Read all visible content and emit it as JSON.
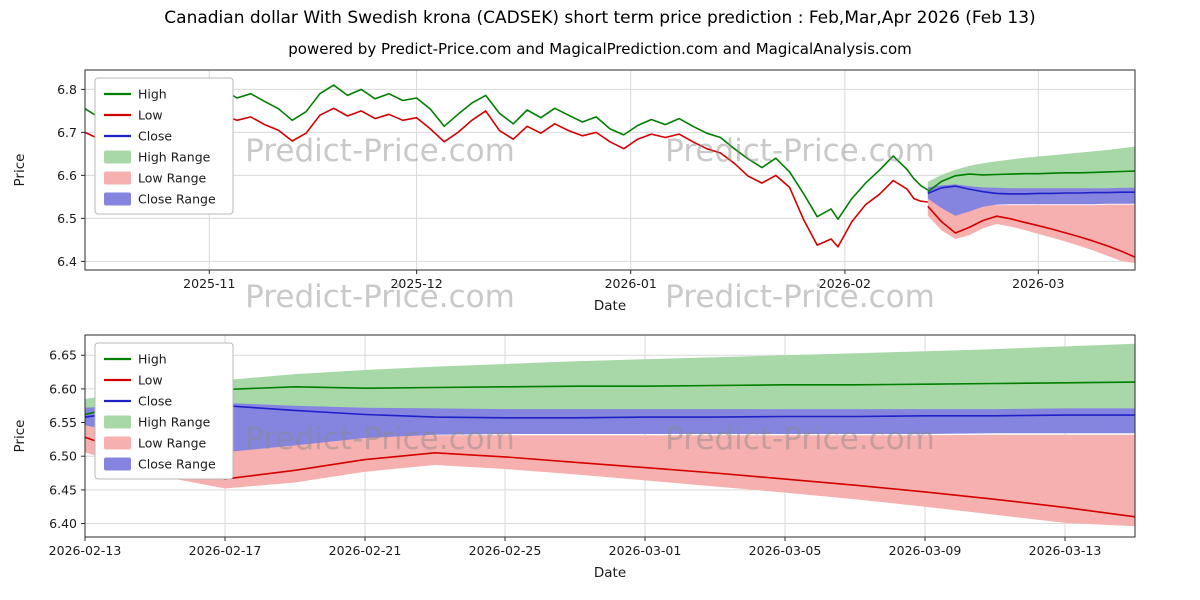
{
  "watermark": "Predict-Price.com",
  "colors": {
    "high": "#007f00",
    "low": "#d40000",
    "close": "#2020c8",
    "high_range": "#a8d8a8",
    "low_range": "#f7b0b0",
    "close_range": "#8585e0"
  },
  "chart_data": [
    {
      "id": "main-chart",
      "type": "line",
      "title": "Canadian dollar With Swedish krona (CADSEK) short term price prediction : Feb,Mar,Apr 2026 (Feb 13)",
      "subtitle": "powered by Predict-Price.com and MagicalPrediction.com and MagicalAnalysis.com",
      "xlabel": "Date",
      "ylabel": "Price",
      "xlim": [
        "2025-10-14",
        "2026-03-15"
      ],
      "ylim": [
        6.38,
        6.845
      ],
      "grid": true,
      "legend_position": "upper left",
      "yticks": [
        {
          "v": 6.4,
          "label": "6.4"
        },
        {
          "v": 6.5,
          "label": "6.5"
        },
        {
          "v": 6.6,
          "label": "6.6"
        },
        {
          "v": 6.7,
          "label": "6.7"
        },
        {
          "v": 6.8,
          "label": "6.8"
        }
      ],
      "xticks": [
        {
          "v": "2025-11-01",
          "label": "2025-11"
        },
        {
          "v": "2025-12-01",
          "label": "2025-12"
        },
        {
          "v": "2026-01-01",
          "label": "2026-01"
        },
        {
          "v": "2026-02-01",
          "label": "2026-02"
        },
        {
          "v": "2026-03-01",
          "label": "2026-03"
        }
      ],
      "legend": [
        {
          "label": "High",
          "swatch": "line",
          "color": "high"
        },
        {
          "label": "Low",
          "swatch": "line",
          "color": "low"
        },
        {
          "label": "Close",
          "swatch": "line",
          "color": "close"
        },
        {
          "label": "High Range",
          "swatch": "patch",
          "color": "high_range"
        },
        {
          "label": "Low Range",
          "swatch": "patch",
          "color": "low_range"
        },
        {
          "label": "Close Range",
          "swatch": "patch",
          "color": "close_range"
        }
      ],
      "series": {
        "historical": {
          "points": [
            [
              "2025-10-14",
              6.755,
              6.7
            ],
            [
              "2025-10-16",
              6.735,
              6.685
            ],
            [
              "2025-10-18",
              6.76,
              6.705
            ],
            [
              "2025-10-20",
              6.775,
              6.725
            ],
            [
              "2025-10-22",
              6.795,
              6.745
            ],
            [
              "2025-10-24",
              6.788,
              6.735
            ],
            [
              "2025-10-26",
              6.8,
              6.748
            ],
            [
              "2025-10-28",
              6.805,
              6.752
            ],
            [
              "2025-10-30",
              6.798,
              6.742
            ],
            [
              "2025-11-01",
              6.803,
              6.748
            ],
            [
              "2025-11-03",
              6.8,
              6.74
            ],
            [
              "2025-11-05",
              6.78,
              6.728
            ],
            [
              "2025-11-07",
              6.79,
              6.736
            ],
            [
              "2025-11-09",
              6.772,
              6.718
            ],
            [
              "2025-11-11",
              6.755,
              6.705
            ],
            [
              "2025-11-13",
              6.728,
              6.68
            ],
            [
              "2025-11-15",
              6.748,
              6.698
            ],
            [
              "2025-11-17",
              6.79,
              6.74
            ],
            [
              "2025-11-19",
              6.81,
              6.756
            ],
            [
              "2025-11-21",
              6.786,
              6.738
            ],
            [
              "2025-11-23",
              6.8,
              6.75
            ],
            [
              "2025-11-25",
              6.778,
              6.732
            ],
            [
              "2025-11-27",
              6.79,
              6.742
            ],
            [
              "2025-11-29",
              6.774,
              6.728
            ],
            [
              "2025-12-01",
              6.78,
              6.734
            ],
            [
              "2025-12-03",
              6.754,
              6.708
            ],
            [
              "2025-12-05",
              6.714,
              6.678
            ],
            [
              "2025-12-07",
              6.742,
              6.7
            ],
            [
              "2025-12-09",
              6.768,
              6.728
            ],
            [
              "2025-12-11",
              6.786,
              6.75
            ],
            [
              "2025-12-13",
              6.744,
              6.704
            ],
            [
              "2025-12-15",
              6.72,
              6.684
            ],
            [
              "2025-12-17",
              6.752,
              6.714
            ],
            [
              "2025-12-19",
              6.734,
              6.698
            ],
            [
              "2025-12-21",
              6.756,
              6.72
            ],
            [
              "2025-12-23",
              6.74,
              6.704
            ],
            [
              "2025-12-25",
              6.724,
              6.692
            ],
            [
              "2025-12-27",
              6.736,
              6.7
            ],
            [
              "2025-12-29",
              6.708,
              6.678
            ],
            [
              "2025-12-31",
              6.694,
              6.662
            ],
            [
              "2026-01-02",
              6.716,
              6.684
            ],
            [
              "2026-01-04",
              6.73,
              6.696
            ],
            [
              "2026-01-06",
              6.718,
              6.688
            ],
            [
              "2026-01-08",
              6.732,
              6.696
            ],
            [
              "2026-01-10",
              6.714,
              6.678
            ],
            [
              "2026-01-12",
              6.698,
              6.662
            ],
            [
              "2026-01-14",
              6.688,
              6.652
            ],
            [
              "2026-01-16",
              6.662,
              6.628
            ],
            [
              "2026-01-18",
              6.638,
              6.598
            ],
            [
              "2026-01-20",
              6.618,
              6.582
            ],
            [
              "2026-01-22",
              6.64,
              6.6
            ],
            [
              "2026-01-24",
              6.608,
              6.572
            ],
            [
              "2026-01-26",
              6.558,
              6.498
            ],
            [
              "2026-01-28",
              6.504,
              6.438
            ],
            [
              "2026-01-30",
              6.522,
              6.452
            ],
            [
              "2026-01-31",
              6.498,
              6.434
            ],
            [
              "2026-02-02",
              6.546,
              6.492
            ],
            [
              "2026-02-04",
              6.582,
              6.532
            ],
            [
              "2026-02-06",
              6.612,
              6.556
            ],
            [
              "2026-02-08",
              6.645,
              6.588
            ],
            [
              "2026-02-10",
              6.614,
              6.568
            ],
            [
              "2026-02-11",
              6.592,
              6.546
            ],
            [
              "2026-02-12",
              6.576,
              6.54
            ],
            [
              "2026-02-13",
              6.566,
              6.538
            ]
          ]
        },
        "forecast": {
          "dates": [
            "2026-02-13",
            "2026-02-15",
            "2026-02-17",
            "2026-02-19",
            "2026-02-21",
            "2026-02-23",
            "2026-02-25",
            "2026-02-27",
            "2026-03-01",
            "2026-03-03",
            "2026-03-05",
            "2026-03-07",
            "2026-03-09",
            "2026-03-11",
            "2026-03-13",
            "2026-03-15"
          ],
          "high": [
            6.562,
            6.586,
            6.599,
            6.603,
            6.601,
            6.602,
            6.603,
            6.604,
            6.604,
            6.605,
            6.606,
            6.606,
            6.607,
            6.608,
            6.609,
            6.61
          ],
          "low": [
            6.528,
            6.492,
            6.466,
            6.479,
            6.495,
            6.505,
            6.499,
            6.491,
            6.483,
            6.475,
            6.466,
            6.457,
            6.447,
            6.436,
            6.424,
            6.41
          ],
          "close": [
            6.558,
            6.571,
            6.575,
            6.568,
            6.562,
            6.558,
            6.557,
            6.557,
            6.558,
            6.558,
            6.559,
            6.559,
            6.56,
            6.56,
            6.561,
            6.561
          ],
          "high_range_top": [
            6.585,
            6.601,
            6.613,
            6.622,
            6.628,
            6.633,
            6.637,
            6.641,
            6.644,
            6.647,
            6.65,
            6.653,
            6.656,
            6.659,
            6.663,
            6.667
          ],
          "high_range_bottom": [
            6.556,
            6.556,
            6.556,
            6.556,
            6.556,
            6.557,
            6.557,
            6.557,
            6.557,
            6.558,
            6.558,
            6.558,
            6.558,
            6.559,
            6.559,
            6.559
          ],
          "close_range_top": [
            6.572,
            6.577,
            6.579,
            6.575,
            6.572,
            6.571,
            6.57,
            6.57,
            6.57,
            6.57,
            6.57,
            6.57,
            6.57,
            6.57,
            6.571,
            6.571
          ],
          "close_range_bottom": [
            6.546,
            6.524,
            6.506,
            6.516,
            6.527,
            6.532,
            6.533,
            6.533,
            6.533,
            6.533,
            6.533,
            6.533,
            6.533,
            6.534,
            6.534,
            6.534
          ],
          "low_range_top": [
            6.548,
            6.536,
            6.53,
            6.53,
            6.531,
            6.531,
            6.531,
            6.531,
            6.531,
            6.531,
            6.531,
            6.531,
            6.531,
            6.532,
            6.532,
            6.532
          ],
          "low_range_bottom": [
            6.506,
            6.472,
            6.452,
            6.461,
            6.477,
            6.487,
            6.481,
            6.473,
            6.464,
            6.455,
            6.446,
            6.436,
            6.425,
            6.413,
            6.401,
            6.396
          ]
        }
      }
    },
    {
      "id": "forecast-zoom-chart",
      "type": "line",
      "title": "",
      "xlabel": "Date",
      "ylabel": "Price",
      "xlim": [
        "2026-02-13",
        "2026-03-15"
      ],
      "ylim": [
        6.38,
        6.68
      ],
      "grid": true,
      "legend_position": "upper left",
      "yticks": [
        {
          "v": 6.4,
          "label": "6.40"
        },
        {
          "v": 6.45,
          "label": "6.45"
        },
        {
          "v": 6.5,
          "label": "6.50"
        },
        {
          "v": 6.55,
          "label": "6.55"
        },
        {
          "v": 6.6,
          "label": "6.60"
        },
        {
          "v": 6.65,
          "label": "6.65"
        }
      ],
      "xticks": [
        {
          "v": "2026-02-13",
          "label": "2026-02-13"
        },
        {
          "v": "2026-02-17",
          "label": "2026-02-17"
        },
        {
          "v": "2026-02-21",
          "label": "2026-02-21"
        },
        {
          "v": "2026-02-25",
          "label": "2026-02-25"
        },
        {
          "v": "2026-03-01",
          "label": "2026-03-01"
        },
        {
          "v": "2026-03-05",
          "label": "2026-03-05"
        },
        {
          "v": "2026-03-09",
          "label": "2026-03-09"
        },
        {
          "v": "2026-03-13",
          "label": "2026-03-13"
        }
      ],
      "legend": [
        {
          "label": "High",
          "swatch": "line",
          "color": "high"
        },
        {
          "label": "Low",
          "swatch": "line",
          "color": "low"
        },
        {
          "label": "Close",
          "swatch": "line",
          "color": "close"
        },
        {
          "label": "High Range",
          "swatch": "patch",
          "color": "high_range"
        },
        {
          "label": "Low Range",
          "swatch": "patch",
          "color": "low_range"
        },
        {
          "label": "Close Range",
          "swatch": "patch",
          "color": "close_range"
        }
      ],
      "series": {
        "forecast_ref": 0
      }
    }
  ]
}
